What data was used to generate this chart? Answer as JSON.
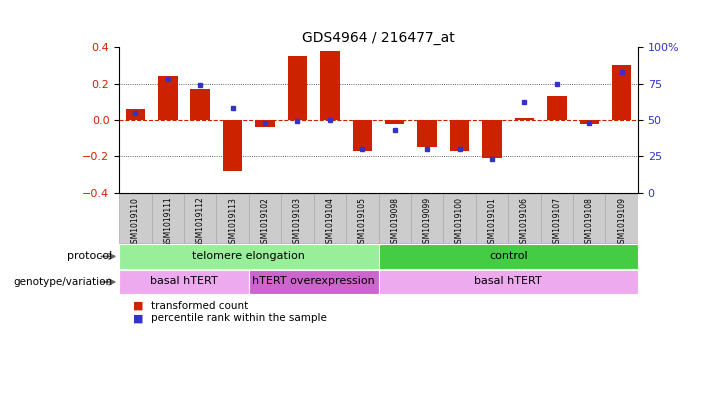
{
  "title": "GDS4964 / 216477_at",
  "samples": [
    "GSM1019110",
    "GSM1019111",
    "GSM1019112",
    "GSM1019113",
    "GSM1019102",
    "GSM1019103",
    "GSM1019104",
    "GSM1019105",
    "GSM1019098",
    "GSM1019099",
    "GSM1019100",
    "GSM1019101",
    "GSM1019106",
    "GSM1019107",
    "GSM1019108",
    "GSM1019109"
  ],
  "bar_values": [
    0.06,
    0.24,
    0.17,
    -0.28,
    -0.04,
    0.35,
    0.38,
    -0.17,
    -0.02,
    -0.15,
    -0.17,
    -0.21,
    0.01,
    0.13,
    -0.02,
    0.3
  ],
  "dot_values_pct": [
    55,
    78,
    74,
    58,
    48,
    49,
    50,
    30,
    43,
    30,
    30,
    23,
    62,
    75,
    48,
    83
  ],
  "ylim": [
    -0.4,
    0.4
  ],
  "yticks_left": [
    -0.4,
    -0.2,
    0.0,
    0.2,
    0.4
  ],
  "yticks_right": [
    0,
    25,
    50,
    75,
    100
  ],
  "bar_color": "#cc2200",
  "dot_color": "#3333cc",
  "zero_line_color": "#cc2200",
  "dotted_line_color": "#333333",
  "bg_color": "#ffffff",
  "protocol_groups": [
    {
      "label": "telomere elongation",
      "start": 0,
      "end": 7,
      "color": "#99ee99"
    },
    {
      "label": "control",
      "start": 8,
      "end": 15,
      "color": "#44cc44"
    }
  ],
  "genotype_groups": [
    {
      "label": "basal hTERT",
      "start": 0,
      "end": 3,
      "color": "#eeaaee"
    },
    {
      "label": "hTERT overexpression",
      "start": 4,
      "end": 7,
      "color": "#cc66cc"
    },
    {
      "label": "basal hTERT",
      "start": 8,
      "end": 15,
      "color": "#eeaaee"
    }
  ],
  "legend_items": [
    {
      "label": "transformed count",
      "color": "#cc2200"
    },
    {
      "label": "percentile rank within the sample",
      "color": "#3333cc"
    }
  ],
  "protocol_label": "protocol",
  "genotype_label": "genotype/variation",
  "sample_box_color": "#cccccc",
  "sample_box_edge": "#aaaaaa"
}
